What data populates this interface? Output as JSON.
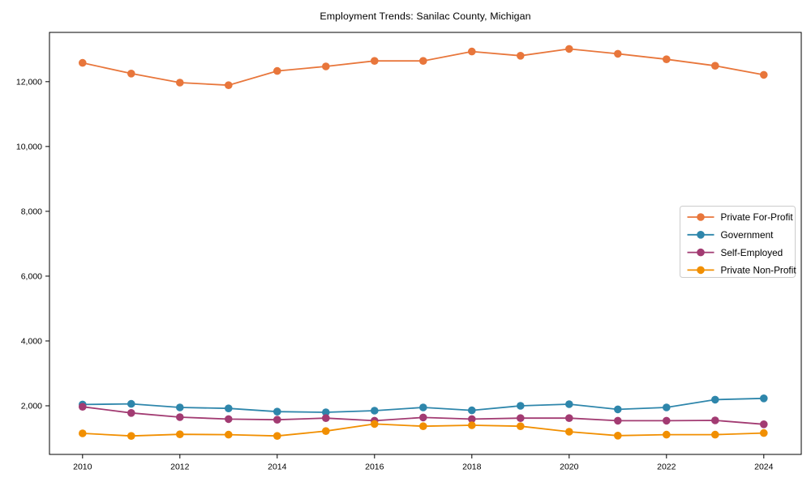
{
  "title": "Employment Trends: Sanilac County, Michigan",
  "chart_data": {
    "type": "line",
    "title": "Employment Trends: Sanilac County, Michigan",
    "xlabel": "",
    "ylabel": "",
    "x": [
      2010,
      2011,
      2012,
      2013,
      2014,
      2015,
      2016,
      2017,
      2018,
      2019,
      2020,
      2021,
      2022,
      2023,
      2024
    ],
    "series": [
      {
        "name": "Private For-Profit",
        "color": "#E8763B",
        "values": [
          12580,
          12250,
          11970,
          11890,
          12330,
          12470,
          12640,
          12640,
          12930,
          12800,
          13010,
          12860,
          12690,
          12490,
          12210
        ]
      },
      {
        "name": "Government",
        "color": "#2E86AB",
        "values": [
          2040,
          2060,
          1950,
          1920,
          1820,
          1800,
          1850,
          1950,
          1860,
          2000,
          2050,
          1890,
          1950,
          2190,
          2230
        ]
      },
      {
        "name": "Self-Employed",
        "color": "#A23B72",
        "values": [
          1970,
          1780,
          1650,
          1590,
          1570,
          1620,
          1540,
          1640,
          1590,
          1620,
          1620,
          1540,
          1540,
          1550,
          1430
        ]
      },
      {
        "name": "Private Non-Profit",
        "color": "#F18F01",
        "values": [
          1150,
          1070,
          1120,
          1110,
          1070,
          1220,
          1440,
          1370,
          1400,
          1370,
          1200,
          1080,
          1110,
          1110,
          1160
        ]
      }
    ],
    "xticks": [
      2010,
      2012,
      2014,
      2016,
      2018,
      2020,
      2022,
      2024
    ],
    "yticks": [
      2000,
      4000,
      6000,
      8000,
      10000,
      12000
    ],
    "ytick_labels": [
      "2,000",
      "4,000",
      "6,000",
      "8,000",
      "10,000",
      "12,000"
    ],
    "xlim": [
      2009.32,
      2024.77
    ],
    "ylim": [
      500,
      13520
    ],
    "grid": false,
    "marker": "circle",
    "legend_position": "center right",
    "legend_border_color": "#cccccc",
    "axis_color": "#000000"
  }
}
